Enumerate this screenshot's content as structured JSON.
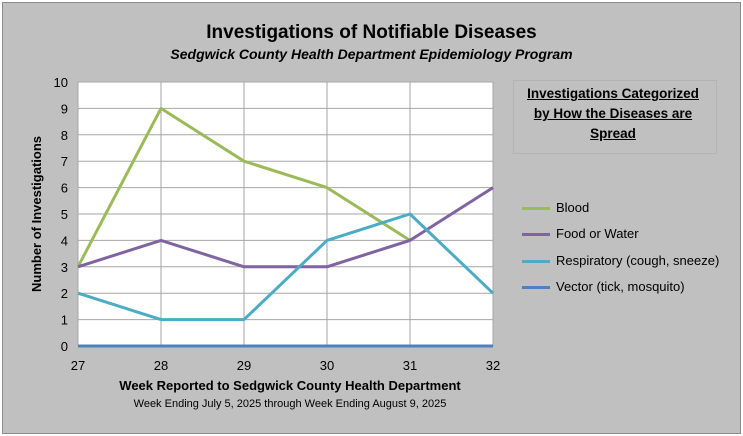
{
  "chart_data": {
    "type": "line",
    "title": "Investigations of Notifiable Diseases",
    "subtitle": "Sedgwick County Health Department Epidemiology Program",
    "xlabel": "Week Reported to Sedgwick County Health Department",
    "xlabel_sub": "Week Ending  July 5, 2025 through Week Ending  August 9, 2025",
    "ylabel": "Number of Investigations",
    "x": [
      27,
      28,
      29,
      30,
      31,
      32
    ],
    "xlim": [
      27,
      32
    ],
    "ylim": [
      0,
      10
    ],
    "yticks": [
      0,
      1,
      2,
      3,
      4,
      5,
      6,
      7,
      8,
      9,
      10
    ],
    "grid": true,
    "legend_title": "Investigations Categorized by How the Diseases are Spread",
    "legend_position": "right",
    "series": [
      {
        "name": "Blood",
        "color": "#9bbb59",
        "x": [
          27,
          28,
          29,
          30,
          31
        ],
        "values": [
          3,
          9,
          7,
          6,
          4
        ]
      },
      {
        "name": "Food or Water",
        "color": "#8064a2",
        "x": [
          27,
          28,
          29,
          30,
          31,
          32
        ],
        "values": [
          3,
          4,
          3,
          3,
          4,
          6
        ]
      },
      {
        "name": "Respiratory (cough, sneeze)",
        "color": "#4bacc6",
        "x": [
          27,
          28,
          29,
          30,
          31,
          32
        ],
        "values": [
          2,
          1,
          1,
          4,
          5,
          2
        ]
      },
      {
        "name": "Vector (tick, mosquito)",
        "color": "#4f81bd",
        "x": [
          27,
          28,
          29,
          30,
          31,
          32
        ],
        "values": [
          0,
          0,
          0,
          0,
          0,
          0
        ]
      }
    ]
  }
}
